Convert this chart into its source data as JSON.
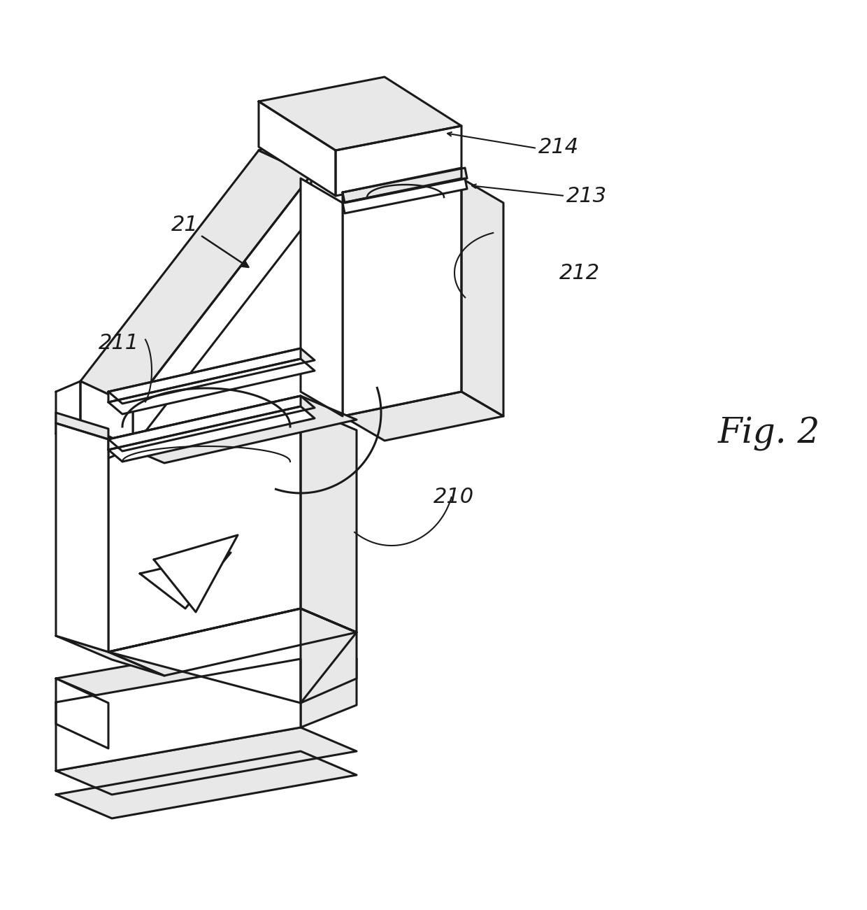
{
  "bg_color": "#ffffff",
  "lc": "#1a1a1a",
  "lw": 2.2,
  "wf": "#ffffff",
  "gf": "#e8e8e8",
  "fig_text": "Fig. 2",
  "label_fs": 22,
  "fig_fs": 36
}
